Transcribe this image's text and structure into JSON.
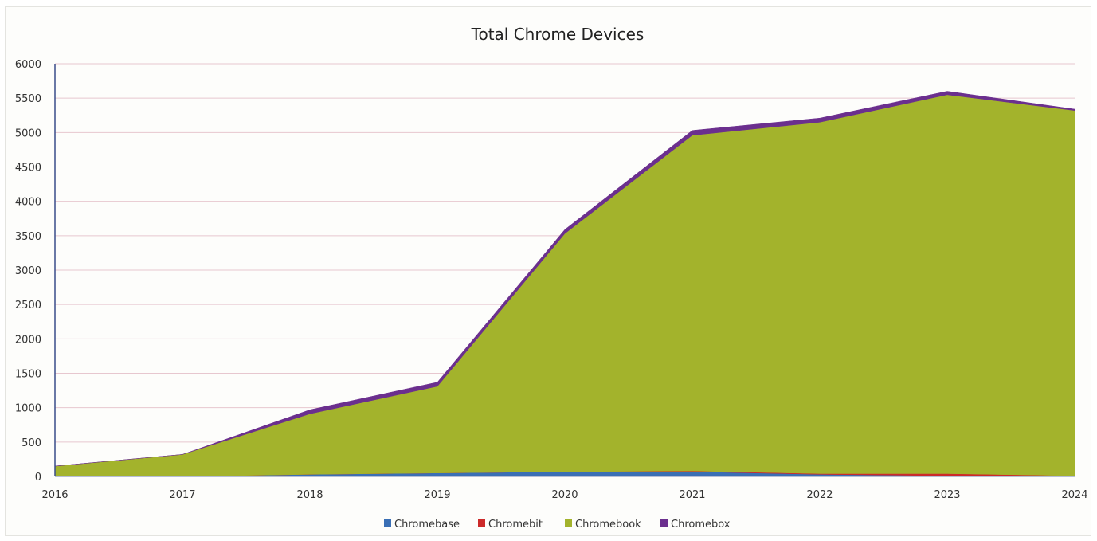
{
  "chart_data": {
    "type": "area",
    "stacked": true,
    "title": "Total Chrome Devices",
    "xlabel": "",
    "ylabel": "",
    "x": [
      "2016",
      "2017",
      "2018",
      "2019",
      "2020",
      "2021",
      "2022",
      "2023",
      "2024"
    ],
    "ylim": [
      0,
      6000
    ],
    "yticks": [
      0,
      500,
      1000,
      1500,
      2000,
      2500,
      3000,
      3500,
      4000,
      4500,
      5000,
      5500,
      6000
    ],
    "grid": true,
    "legend_position": "bottom",
    "series": [
      {
        "name": "Chromebase",
        "color": "#3a6fb5",
        "values": [
          0,
          0,
          30,
          50,
          70,
          70,
          30,
          10,
          0
        ]
      },
      {
        "name": "Chromebit",
        "color": "#cc2a2a",
        "values": [
          0,
          0,
          0,
          0,
          0,
          10,
          10,
          30,
          10
        ]
      },
      {
        "name": "Chromebook",
        "color": "#a3b32c",
        "values": [
          150,
          320,
          880,
          1260,
          3460,
          4880,
          5110,
          5510,
          5310
        ]
      },
      {
        "name": "Chromebox",
        "color": "#6b2f8e",
        "values": [
          0,
          0,
          60,
          60,
          60,
          70,
          60,
          50,
          20
        ]
      }
    ]
  }
}
